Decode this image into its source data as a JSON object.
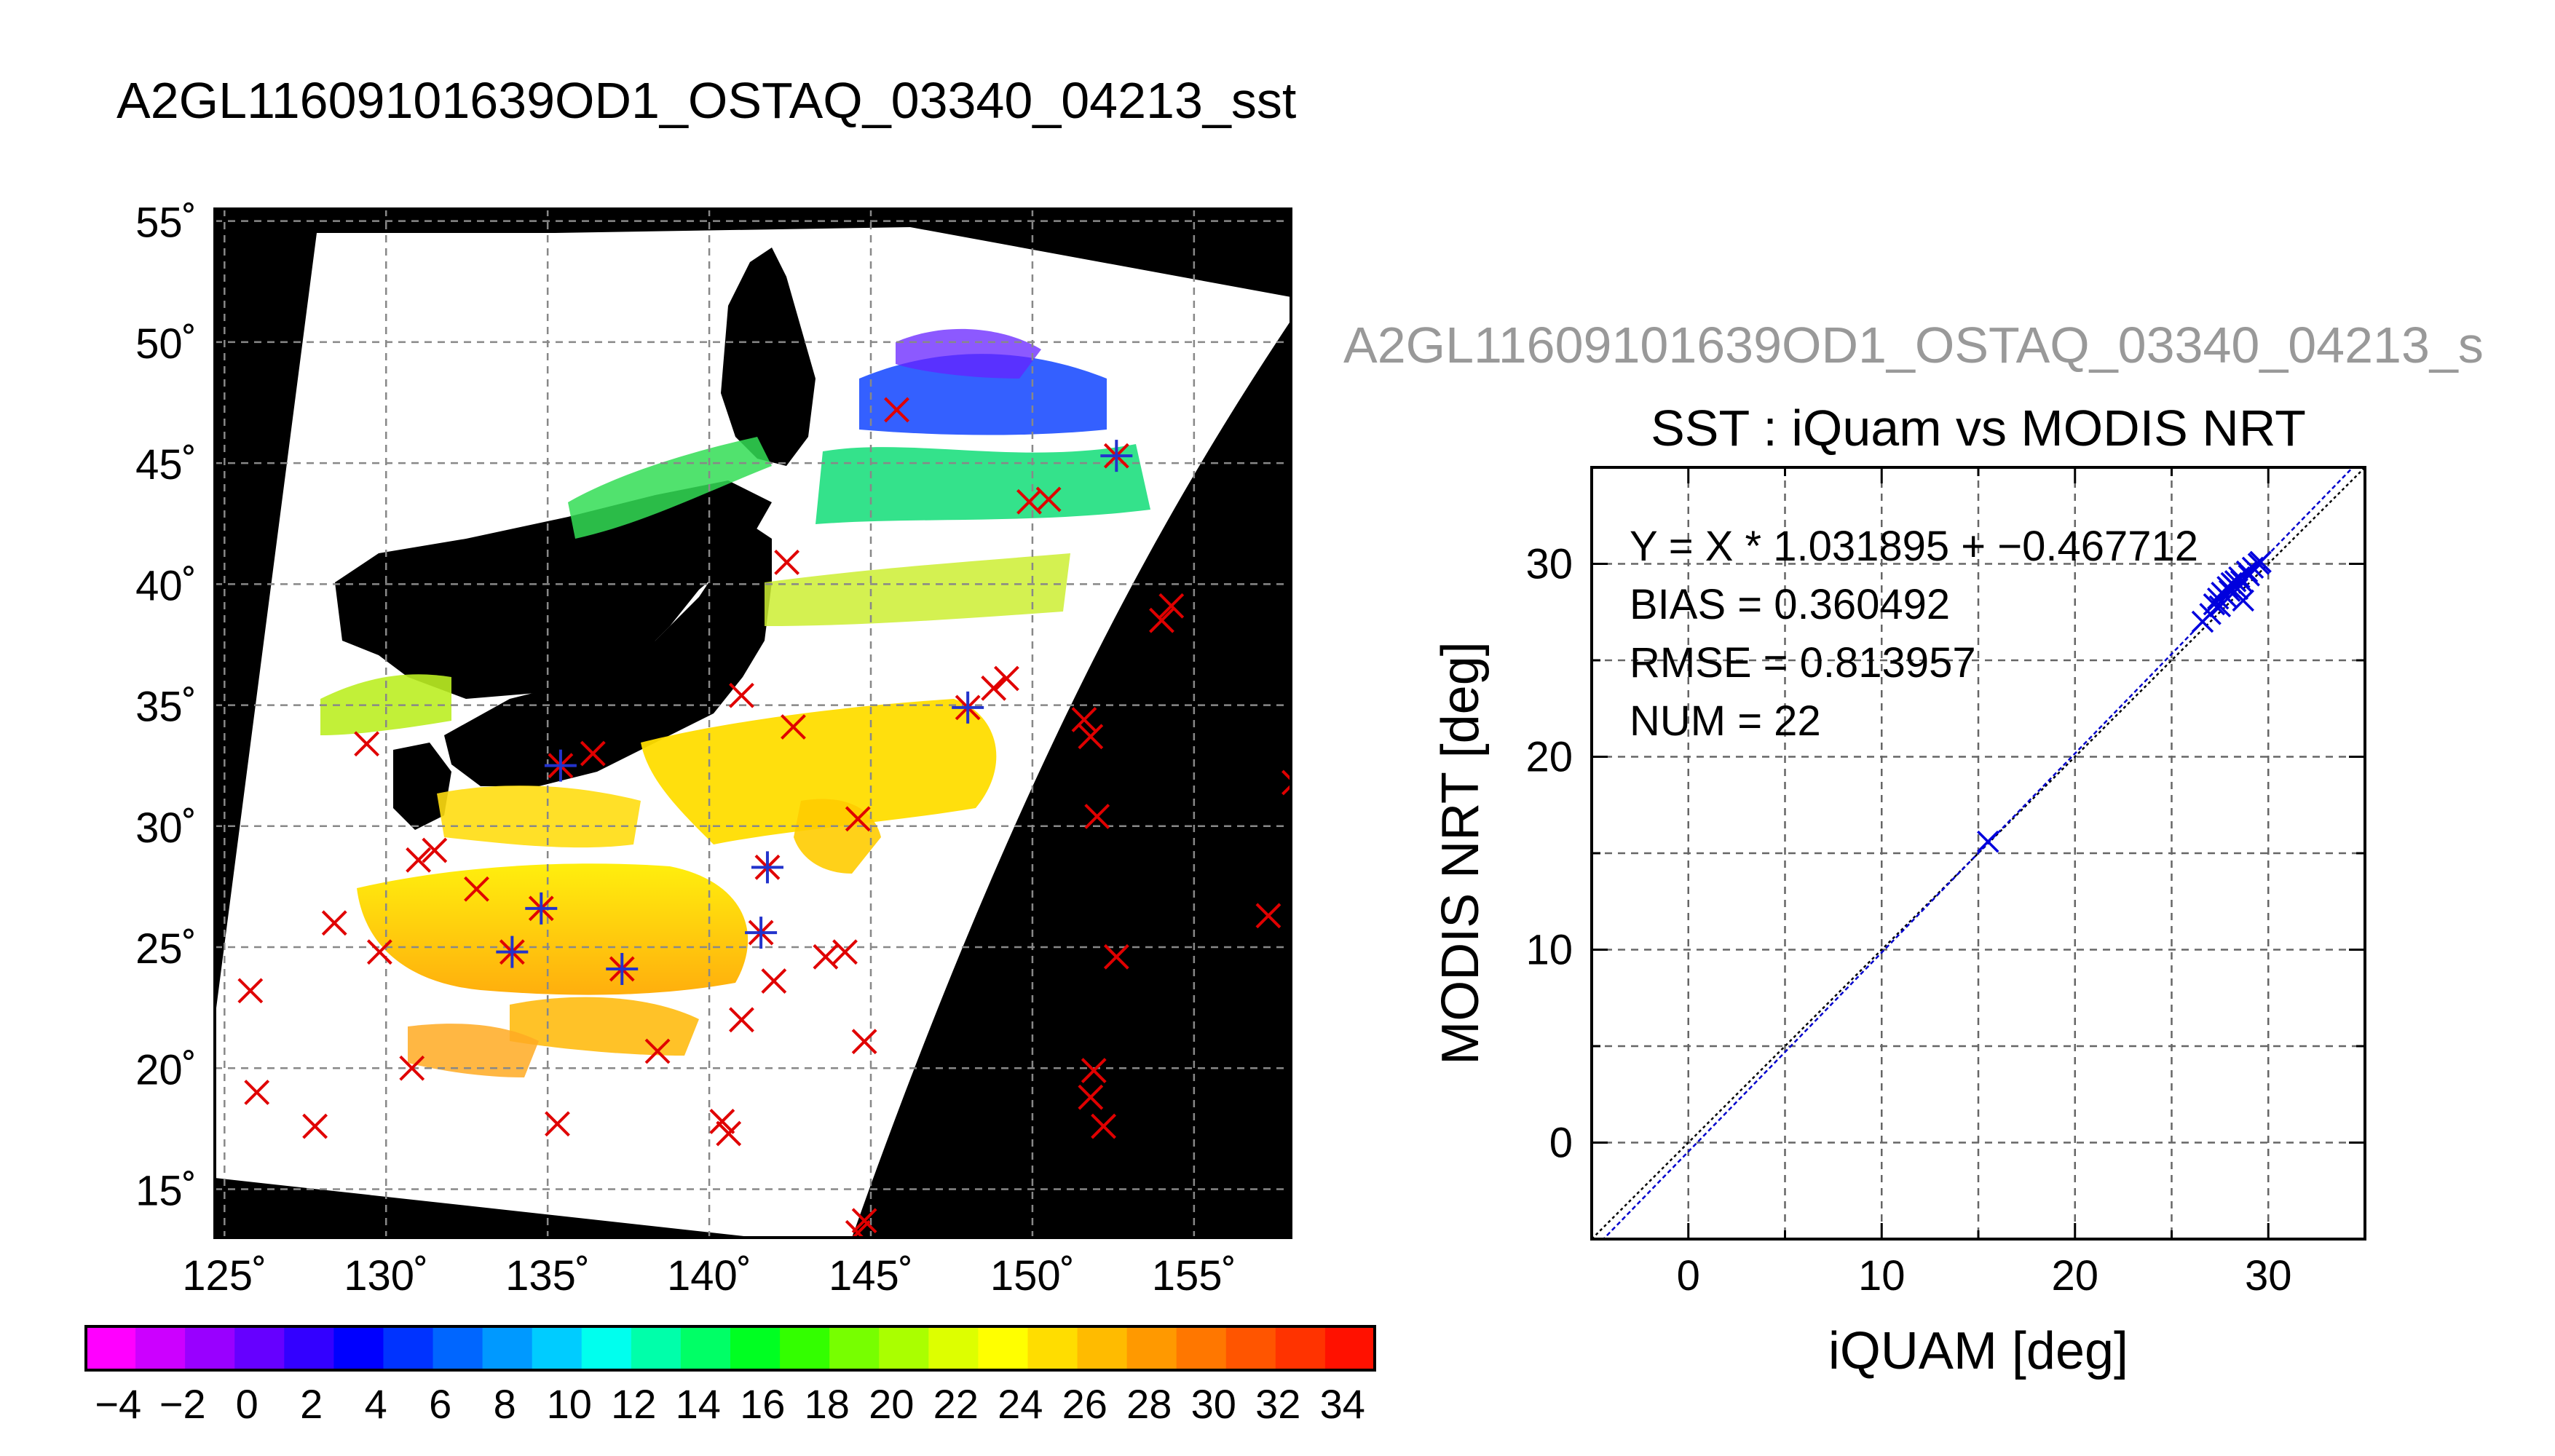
{
  "main_title": "A2GL11609101639OD1_OSTAQ_03340_04213_sst",
  "map": {
    "lon_ticks": [
      "125˚",
      "130˚",
      "135˚",
      "140˚",
      "145˚",
      "150˚",
      "155˚"
    ],
    "lat_ticks": [
      "55˚",
      "50˚",
      "45˚",
      "40˚",
      "35˚",
      "30˚",
      "25˚",
      "20˚",
      "15˚"
    ],
    "lon_range": [
      124.7,
      158.0
    ],
    "lat_range": [
      13.0,
      55.5
    ]
  },
  "colorbar": {
    "labels": [
      "−4",
      "−2",
      "0",
      "2",
      "4",
      "6",
      "8",
      "10",
      "12",
      "14",
      "16",
      "18",
      "20",
      "22",
      "24",
      "26",
      "28",
      "30",
      "32",
      "34"
    ],
    "colors": [
      "#ff00ff",
      "#cc00ff",
      "#9900ff",
      "#6600ff",
      "#3300ff",
      "#0000ff",
      "#0033ff",
      "#0066ff",
      "#0099ff",
      "#00ccff",
      "#00ffee",
      "#00ffaa",
      "#00ff66",
      "#00ff22",
      "#33ff00",
      "#77ff00",
      "#aaff00",
      "#ddff00",
      "#ffff00",
      "#ffdd00",
      "#ffbb00",
      "#ff9900",
      "#ff7700",
      "#ff5500",
      "#ff3300",
      "#ff1100"
    ]
  },
  "scatter_subtitle": "A2GL11609101639OD1_OSTAQ_03340_04213_s",
  "chart_data": {
    "type": "scatter",
    "title": "SST : iQuam vs MODIS NRT",
    "xlabel": "iQUAM [deg]",
    "ylabel": "MODIS NRT [deg]",
    "xlim": [
      -5,
      35
    ],
    "ylim": [
      -5,
      35
    ],
    "xticks": [
      0,
      10,
      20,
      30
    ],
    "yticks": [
      0,
      10,
      20,
      30
    ],
    "grid": true,
    "fit": {
      "slope": 1.031895,
      "intercept": -0.467712
    },
    "stats": [
      "Y = X * 1.031895 + −0.467712",
      "BIAS = 0.360492",
      "RMSE = 0.813957",
      "NUM = 22"
    ],
    "points": [
      [
        15.5,
        15.6
      ],
      [
        26.6,
        27.0
      ],
      [
        27.0,
        27.4
      ],
      [
        27.2,
        27.9
      ],
      [
        27.4,
        28.2
      ],
      [
        27.6,
        28.5
      ],
      [
        27.9,
        28.8
      ],
      [
        28.1,
        29.0
      ],
      [
        28.3,
        29.1
      ],
      [
        28.0,
        28.6
      ],
      [
        28.5,
        29.3
      ],
      [
        28.7,
        28.1
      ],
      [
        28.9,
        29.6
      ],
      [
        29.2,
        29.8
      ],
      [
        29.5,
        30.0
      ],
      [
        29.6,
        30.1
      ],
      [
        28.2,
        28.9
      ],
      [
        27.8,
        28.3
      ],
      [
        28.4,
        28.7
      ],
      [
        29.0,
        29.4
      ],
      [
        27.5,
        27.8
      ],
      [
        28.6,
        29.1
      ]
    ]
  }
}
